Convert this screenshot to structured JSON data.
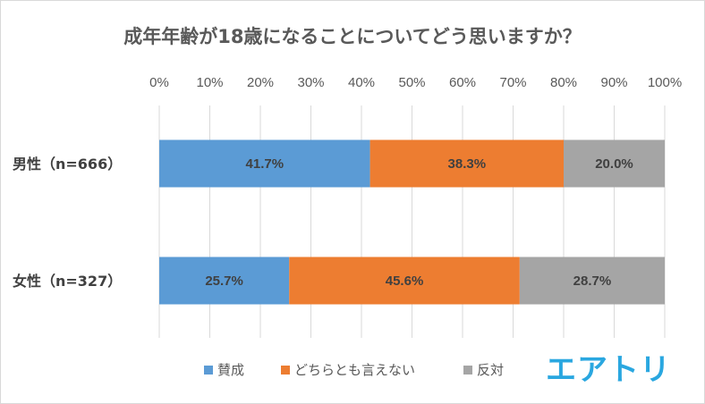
{
  "chart_data": {
    "type": "bar",
    "orientation": "horizontal",
    "stacked": true,
    "title": "成年年齢が18歳になることについてどう思いますか？",
    "categories": [
      "男性（n=666）",
      "女性（n=327）"
    ],
    "series": [
      {
        "name": "賛成",
        "color": "#5b9bd5",
        "values": [
          41.7,
          25.7
        ],
        "labels": [
          "41.7%",
          "25.7%"
        ]
      },
      {
        "name": "どちらとも言えない",
        "color": "#ed7d31",
        "values": [
          38.3,
          45.6
        ],
        "labels": [
          "38.3%",
          "45.6%"
        ]
      },
      {
        "name": "反対",
        "color": "#a5a5a5",
        "values": [
          20.0,
          28.7
        ],
        "labels": [
          "20.0%",
          "28.7%"
        ]
      }
    ],
    "xlim": [
      0,
      100
    ],
    "x_ticks": [
      0,
      10,
      20,
      30,
      40,
      50,
      60,
      70,
      80,
      90,
      100
    ],
    "x_tick_labels": [
      "0%",
      "10%",
      "20%",
      "30%",
      "40%",
      "50%",
      "60%",
      "70%",
      "80%",
      "90%",
      "100%"
    ],
    "grid": true,
    "legend_position": "bottom"
  },
  "logo": {
    "text": "エアトリ",
    "color": "#2aa7e0"
  }
}
